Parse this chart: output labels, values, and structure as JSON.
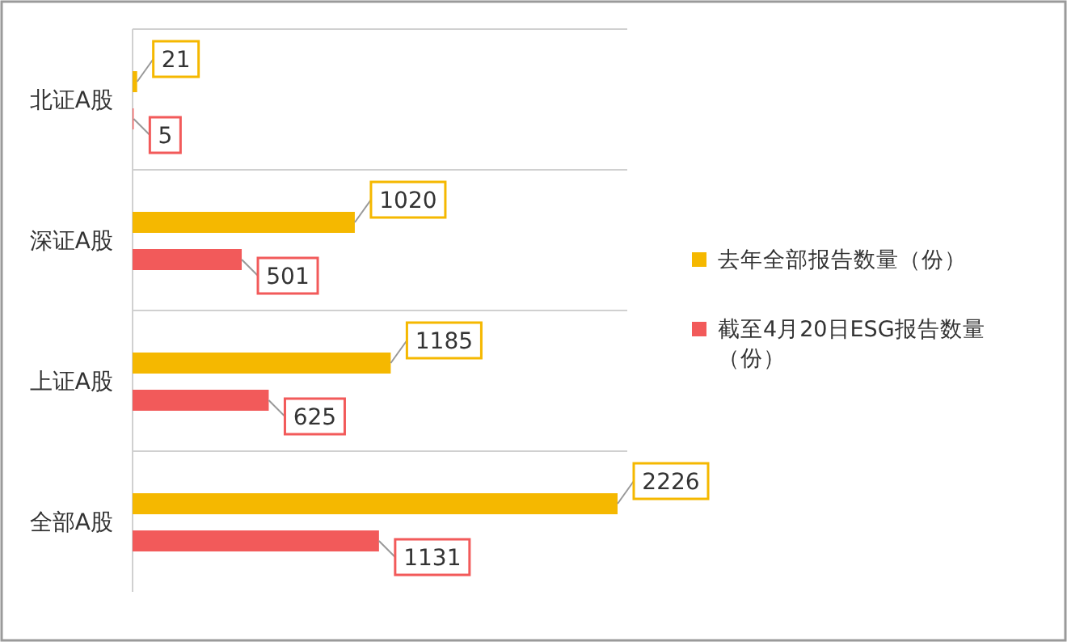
{
  "chart_data": {
    "type": "bar",
    "orientation": "horizontal",
    "categories": [
      "北证A股",
      "深证A股",
      "上证A股",
      "全部A股"
    ],
    "series": [
      {
        "name": "去年全部报告数量（份）",
        "color": "#f5b800",
        "values": [
          21,
          1020,
          1185,
          2226
        ]
      },
      {
        "name": "截至4月20日ESG报告数量（份）",
        "color": "#f25a5a",
        "values": [
          5,
          501,
          625,
          1131
        ]
      }
    ],
    "data_labels": true,
    "legend": "right"
  }
}
